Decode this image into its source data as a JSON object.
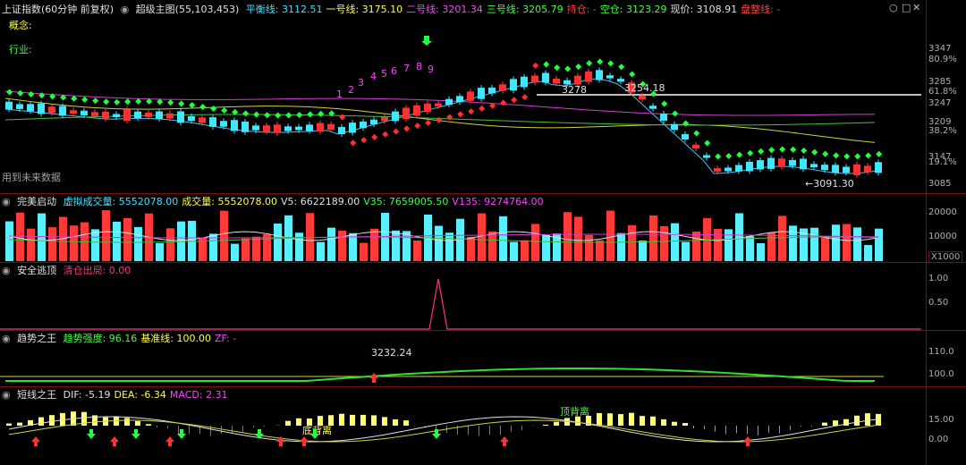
{
  "main": {
    "title": "上证指数(60分钟 前复权)",
    "indicator_name": "超级主图(55,103,453)",
    "ma_labels": [
      {
        "text": "平衡线: 3112.51",
        "color": "#40e0ff"
      },
      {
        "text": "一号线: 3175.10",
        "color": "#ffff40"
      },
      {
        "text": "二号线: 3201.34",
        "color": "#ff40ff"
      },
      {
        "text": "三号线: 3205.79",
        "color": "#40ff40"
      },
      {
        "text": "持仓: -",
        "color": "#ff4040"
      },
      {
        "text": "空仓: 3123.29",
        "color": "#40ff40"
      },
      {
        "text": "现价: 3108.91",
        "color": "#e0e0e0"
      },
      {
        "text": "盘整线: -",
        "color": "#ff4040"
      }
    ],
    "concept_label": "概念:",
    "industry_label": "行业:",
    "future_data_note": "用到未来数据",
    "count_labels": [
      "1",
      "2",
      "3",
      "4",
      "5",
      "6",
      "7",
      "8",
      "9"
    ],
    "peak_label": "3254.18",
    "peak_label_left": "3278",
    "low_label": "←3091.30",
    "price_ticks": [
      "3347",
      "80.9%",
      "3285",
      "61.8%",
      "3247",
      "3209",
      "38.2%",
      "3147",
      "19.1%",
      "3085"
    ]
  },
  "volume": {
    "name": "完美启动",
    "labels": [
      {
        "text": "虚拟成交量: 5552078.00",
        "color": "#40e0ff"
      },
      {
        "text": "成交量: 5552078.00",
        "color": "#ffff40"
      },
      {
        "text": "V5: 6622189.00",
        "color": "#e0e0e0"
      },
      {
        "text": "V35: 7659005.50",
        "color": "#40ff40"
      },
      {
        "text": "V135: 9274764.00",
        "color": "#ff40ff"
      }
    ],
    "ticks": [
      "20000",
      "10000"
    ],
    "unit": "X1000"
  },
  "escape": {
    "name": "安全逃顶",
    "labels": [
      {
        "text": "清仓出局: 0.00",
        "color": "#ff3080"
      }
    ],
    "ticks": [
      "1.00",
      "0.50"
    ]
  },
  "trend": {
    "name": "趋势之王",
    "labels": [
      {
        "text": "趋势强度: 96.16",
        "color": "#40ff40"
      },
      {
        "text": "基准线: 100.00",
        "color": "#ffff40"
      },
      {
        "text": "ZF: -",
        "color": "#ff40ff"
      }
    ],
    "peak_value": "3232.24",
    "ticks": [
      "110.0",
      "100.0"
    ]
  },
  "macd": {
    "name": "短线之王",
    "labels": [
      {
        "text": "DIF: -5.19",
        "color": "#e0e0e0"
      },
      {
        "text": "DEA: -6.34",
        "color": "#ffff40"
      },
      {
        "text": "MACD: 2.31",
        "color": "#ff40ff"
      }
    ],
    "annotations": [
      "底背离",
      "顶背离"
    ],
    "ticks": [
      "15.00",
      "0.00"
    ]
  },
  "window_controls": [
    "○",
    "□",
    "✕"
  ]
}
